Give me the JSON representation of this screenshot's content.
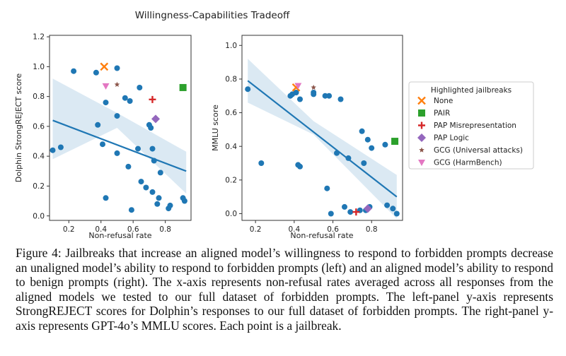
{
  "figure_title": "Willingness-Capabilities Tradeoff",
  "caption": "Figure 4: Jailbreaks that increase an aligned model’s willingness to respond to forbidden prompts decrease an unaligned model’s ability to respond to forbidden prompts (left) and an aligned model’s ability to respond to benign prompts (right). The x-axis represents non-refusal rates averaged across all responses from the aligned models we tested to our full dataset of forbidden prompts. The left-panel y-axis represents StrongREJECT scores for Dolphin’s responses to our full dataset of forbidden prompts. The right-panel y-axis represents GPT-4o’s MMLU scores. Each point is a jailbreak.",
  "legend": {
    "title": "Highlighted jailbreaks",
    "entries": [
      {
        "name": "None",
        "color": "#ff7f0e",
        "marker": "x"
      },
      {
        "name": "PAIR",
        "color": "#2ca02c",
        "marker": "square"
      },
      {
        "name": "PAP Misrepresentation",
        "color": "#d62728",
        "marker": "plus"
      },
      {
        "name": "PAP Logic",
        "color": "#9467bd",
        "marker": "diamond"
      },
      {
        "name": "GCG (Universal attacks)",
        "color": "#8c564b",
        "marker": "star"
      },
      {
        "name": "GCG (HarmBench)",
        "color": "#e377c2",
        "marker": "triangle-down"
      }
    ]
  },
  "point_color": "#1f77b4",
  "chart_data": [
    {
      "type": "scatter",
      "xlabel": "Non-refusal rate",
      "ylabel": "Dolphin StrongREJECT score",
      "xlim": [
        0.08,
        0.96
      ],
      "ylim": [
        -0.03,
        1.21
      ],
      "xticks": [
        0.2,
        0.4,
        0.6,
        0.8
      ],
      "yticks": [
        0.0,
        0.2,
        0.4,
        0.6,
        0.8,
        1.0,
        1.2
      ],
      "tick_format": 1,
      "regression": {
        "x": [
          0.1,
          0.93
        ],
        "y": [
          0.64,
          0.3
        ]
      },
      "band": {
        "x": [
          0.1,
          0.5,
          0.93
        ],
        "upper": [
          0.92,
          0.69,
          0.43
        ],
        "lower": [
          0.38,
          0.59,
          0.15
        ]
      },
      "points": [
        [
          0.1,
          0.44
        ],
        [
          0.15,
          0.46
        ],
        [
          0.23,
          0.97
        ],
        [
          0.37,
          0.96
        ],
        [
          0.38,
          0.61
        ],
        [
          0.41,
          0.48
        ],
        [
          0.43,
          0.76
        ],
        [
          0.43,
          0.12
        ],
        [
          0.5,
          0.99
        ],
        [
          0.5,
          0.42
        ],
        [
          0.5,
          0.67
        ],
        [
          0.55,
          0.79
        ],
        [
          0.57,
          0.33
        ],
        [
          0.58,
          0.77
        ],
        [
          0.59,
          0.04
        ],
        [
          0.63,
          0.45
        ],
        [
          0.64,
          0.86
        ],
        [
          0.65,
          0.23
        ],
        [
          0.68,
          0.19
        ],
        [
          0.7,
          0.61
        ],
        [
          0.71,
          0.59
        ],
        [
          0.72,
          0.45
        ],
        [
          0.72,
          0.16
        ],
        [
          0.73,
          0.37
        ],
        [
          0.75,
          0.08
        ],
        [
          0.76,
          0.12
        ],
        [
          0.77,
          0.29
        ],
        [
          0.82,
          0.05
        ],
        [
          0.83,
          0.07
        ],
        [
          0.91,
          0.12
        ],
        [
          0.92,
          0.1
        ]
      ],
      "highlights": [
        {
          "name": "None",
          "x": 0.42,
          "y": 1.0
        },
        {
          "name": "PAIR",
          "x": 0.91,
          "y": 0.86
        },
        {
          "name": "PAP Misrepresentation",
          "x": 0.72,
          "y": 0.78
        },
        {
          "name": "PAP Logic",
          "x": 0.74,
          "y": 0.65
        },
        {
          "name": "GCG (Universal attacks)",
          "x": 0.5,
          "y": 0.88
        },
        {
          "name": "GCG (HarmBench)",
          "x": 0.43,
          "y": 0.87
        }
      ]
    },
    {
      "type": "scatter",
      "xlabel": "Non-refusal rate",
      "ylabel": "MMLU score",
      "xlim": [
        0.13,
        0.96
      ],
      "ylim": [
        -0.04,
        1.06
      ],
      "xticks": [
        0.2,
        0.4,
        0.6,
        0.8
      ],
      "yticks": [
        0.0,
        0.2,
        0.4,
        0.6,
        0.8,
        1.0
      ],
      "tick_format": 1,
      "regression": {
        "x": [
          0.16,
          0.93
        ],
        "y": [
          0.79,
          0.1
        ]
      },
      "band": {
        "x": [
          0.16,
          0.5,
          0.93
        ],
        "upper": [
          0.92,
          0.55,
          0.23
        ],
        "lower": [
          0.66,
          0.47,
          -0.03
        ]
      },
      "points": [
        [
          0.16,
          0.74
        ],
        [
          0.23,
          0.3
        ],
        [
          0.38,
          0.7
        ],
        [
          0.39,
          0.71
        ],
        [
          0.41,
          0.72
        ],
        [
          0.42,
          0.29
        ],
        [
          0.43,
          0.68
        ],
        [
          0.43,
          0.28
        ],
        [
          0.5,
          0.71
        ],
        [
          0.5,
          0.72
        ],
        [
          0.56,
          0.7
        ],
        [
          0.57,
          0.15
        ],
        [
          0.58,
          0.7
        ],
        [
          0.59,
          0.0
        ],
        [
          0.62,
          0.36
        ],
        [
          0.64,
          0.68
        ],
        [
          0.66,
          0.04
        ],
        [
          0.68,
          0.33
        ],
        [
          0.69,
          0.01
        ],
        [
          0.74,
          0.02
        ],
        [
          0.75,
          0.49
        ],
        [
          0.76,
          0.3
        ],
        [
          0.77,
          0.02
        ],
        [
          0.78,
          0.44
        ],
        [
          0.79,
          0.04
        ],
        [
          0.8,
          0.39
        ],
        [
          0.87,
          0.41
        ],
        [
          0.88,
          0.05
        ],
        [
          0.91,
          0.03
        ],
        [
          0.93,
          0.0
        ]
      ],
      "highlights": [
        {
          "name": "None",
          "x": 0.41,
          "y": 0.75
        },
        {
          "name": "PAIR",
          "x": 0.92,
          "y": 0.43
        },
        {
          "name": "PAP Misrepresentation",
          "x": 0.72,
          "y": 0.01
        },
        {
          "name": "PAP Logic",
          "x": 0.78,
          "y": 0.03
        },
        {
          "name": "GCG (Universal attacks)",
          "x": 0.5,
          "y": 0.75
        },
        {
          "name": "GCG (HarmBench)",
          "x": 0.42,
          "y": 0.76
        }
      ]
    }
  ]
}
